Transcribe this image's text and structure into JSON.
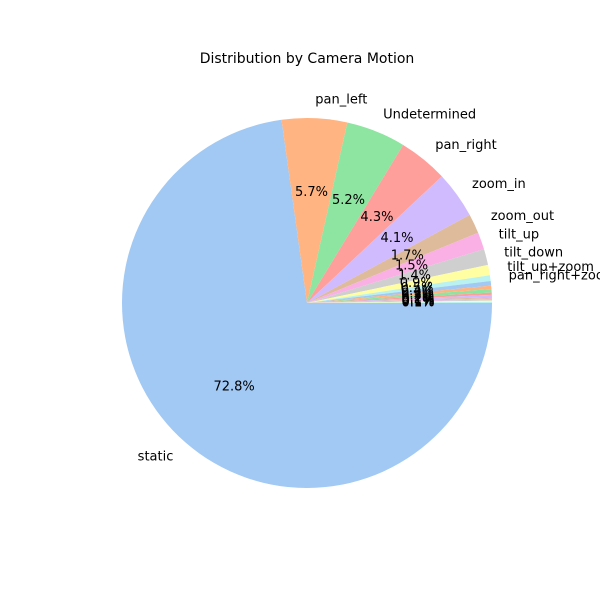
{
  "chart_data": {
    "type": "pie",
    "title": "Distribution by Camera Motion",
    "start_angle_deg": 0,
    "direction": "clockwise-on-screen",
    "slices": [
      {
        "label": "static",
        "value": 72.8,
        "pct_label": "72.8%",
        "color": "#a1c9f4"
      },
      {
        "label": "pan_left",
        "value": 5.7,
        "pct_label": "5.7%",
        "color": "#ffb482"
      },
      {
        "label": "Undetermined",
        "value": 5.2,
        "pct_label": "5.2%",
        "color": "#8de5a1"
      },
      {
        "label": "pan_right",
        "value": 4.3,
        "pct_label": "4.3%",
        "color": "#ff9f9b"
      },
      {
        "label": "zoom_in",
        "value": 4.1,
        "pct_label": "4.1%",
        "color": "#d0bbff"
      },
      {
        "label": "zoom_out",
        "value": 1.7,
        "pct_label": "1.7%",
        "color": "#debb9b"
      },
      {
        "label": "tilt_up",
        "value": 1.5,
        "pct_label": "1.5%",
        "color": "#fab0e4"
      },
      {
        "label": "tilt_down",
        "value": 1.4,
        "pct_label": "1.4%",
        "color": "#cfcfcf"
      },
      {
        "label": "tilt_up+zoom",
        "value": 0.9,
        "pct_label": "0.9%",
        "color": "#fffea3"
      },
      {
        "label": "pan_right+zoom",
        "value": 0.5,
        "pct_label": "0.5%",
        "color": "#b9f2f0"
      },
      {
        "label": "",
        "value": 0.4,
        "pct_label": "0.4%",
        "color": "#a1c9f4"
      },
      {
        "label": "",
        "value": 0.3,
        "pct_label": "0.3%",
        "color": "#ffb482"
      },
      {
        "label": "",
        "value": 0.3,
        "pct_label": "0.3%",
        "color": "#8de5a1"
      },
      {
        "label": "",
        "value": 0.2,
        "pct_label": "0.2%",
        "color": "#ff9f9b"
      },
      {
        "label": "",
        "value": 0.2,
        "pct_label": "0.2%",
        "color": "#d0bbff"
      },
      {
        "label": "",
        "value": 0.1,
        "pct_label": "0.1%",
        "color": "#debb9b"
      },
      {
        "label": "",
        "value": 0.1,
        "pct_label": "0.1%",
        "color": "#fab0e4"
      },
      {
        "label": "",
        "value": 0.1,
        "pct_label": "0.1%",
        "color": "#cfcfcf"
      },
      {
        "label": "",
        "value": 0.1,
        "pct_label": "0.1%",
        "color": "#fffea3"
      },
      {
        "label": "",
        "value": 0.1,
        "pct_label": "0.1%",
        "color": "#b9f2f0"
      }
    ]
  }
}
